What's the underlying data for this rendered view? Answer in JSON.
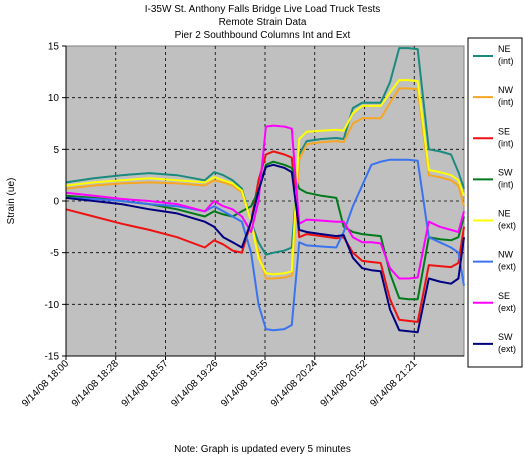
{
  "chart_data": {
    "type": "line",
    "title": "I-35W St. Anthony Falls Bridge Live Load Truck Tests",
    "subtitle": [
      "Remote Strain Data",
      "Pier 2 Southbound Columns Int and Ext"
    ],
    "xlabel": "",
    "ylabel": "Strain (ue)",
    "ylim": [
      -15,
      15
    ],
    "yticks": [
      15,
      10,
      5,
      0,
      -5,
      -10,
      -15
    ],
    "x_tick_labels": [
      "9/14/08 18:00",
      "9/14/08 18:28",
      "9/14/08 18:57",
      "9/14/08 19:26",
      "9/14/08 19:55",
      "9/14/08 20:24",
      "9/14/08 20:52",
      "9/14/08 21:21"
    ],
    "x_unit": "minutes after 9/14/08 18:00",
    "xlim": [
      0,
      215
    ],
    "grid": true,
    "plot_background": "#c0c0c0",
    "legend_position": "right",
    "series": [
      {
        "name": "NE",
        "name2": "(int)",
        "color": "#1a8a7e",
        "x": [
          0,
          15,
          30,
          45,
          60,
          75,
          80,
          85,
          90,
          95,
          100,
          104,
          108,
          112,
          118,
          122,
          126,
          130,
          138,
          146,
          150,
          155,
          160,
          165,
          170,
          175,
          180,
          185,
          190,
          196,
          202,
          208,
          212,
          215
        ],
        "y": [
          1.8,
          2.2,
          2.5,
          2.7,
          2.5,
          2.0,
          2.8,
          2.5,
          2.0,
          1.2,
          -2.0,
          -4.0,
          -5.2,
          -5.0,
          -4.8,
          -4.5,
          4.5,
          5.8,
          6.0,
          6.1,
          6.0,
          9.0,
          9.5,
          9.5,
          9.5,
          11.5,
          14.8,
          14.8,
          14.7,
          5.0,
          4.8,
          4.5,
          2.8,
          1.2
        ]
      },
      {
        "name": "NW",
        "name2": "(int)",
        "color": "#f5a623",
        "x": [
          0,
          15,
          30,
          45,
          60,
          75,
          80,
          85,
          90,
          95,
          100,
          104,
          108,
          112,
          118,
          122,
          126,
          130,
          138,
          146,
          150,
          155,
          160,
          165,
          170,
          175,
          180,
          185,
          190,
          196,
          202,
          208,
          212,
          215
        ],
        "y": [
          1.2,
          1.5,
          1.7,
          1.8,
          1.7,
          1.5,
          2.0,
          1.8,
          1.5,
          0.8,
          -2.0,
          -5.0,
          -7.5,
          -7.5,
          -7.4,
          -7.2,
          4.0,
          5.5,
          5.7,
          5.8,
          5.7,
          7.5,
          8.0,
          8.0,
          8.0,
          9.5,
          10.9,
          10.9,
          10.8,
          2.5,
          2.3,
          2.0,
          1.5,
          -0.5
        ]
      },
      {
        "name": "SE",
        "name2": "(int)",
        "color": "#ee1111",
        "x": [
          0,
          15,
          30,
          45,
          60,
          75,
          80,
          85,
          90,
          95,
          100,
          104,
          108,
          112,
          118,
          122,
          126,
          130,
          138,
          146,
          150,
          155,
          160,
          165,
          170,
          175,
          180,
          185,
          190,
          196,
          202,
          208,
          212,
          215
        ],
        "y": [
          -0.8,
          -1.5,
          -2.2,
          -2.8,
          -3.5,
          -4.5,
          -3.8,
          -4.2,
          -4.8,
          -5.0,
          -2.0,
          2.0,
          4.5,
          4.8,
          4.5,
          4.2,
          -3.5,
          -3.2,
          -3.4,
          -3.6,
          -3.5,
          -5.0,
          -5.8,
          -5.9,
          -6.0,
          -9.5,
          -11.5,
          -11.6,
          -11.7,
          -6.2,
          -6.3,
          -6.4,
          -6.0,
          -2.5
        ]
      },
      {
        "name": "SW",
        "name2": "(int)",
        "color": "#007a1a",
        "x": [
          0,
          15,
          30,
          45,
          60,
          75,
          80,
          85,
          90,
          95,
          100,
          104,
          108,
          112,
          118,
          122,
          126,
          130,
          138,
          146,
          150,
          155,
          160,
          165,
          170,
          175,
          180,
          185,
          190,
          196,
          202,
          208,
          212,
          215
        ],
        "y": [
          0.5,
          0.3,
          0.0,
          -0.3,
          -0.8,
          -1.5,
          -1.0,
          -1.3,
          -1.5,
          -1.0,
          -0.5,
          1.0,
          3.5,
          3.8,
          3.5,
          3.2,
          1.2,
          0.8,
          0.5,
          0.3,
          -2.5,
          -3.0,
          -3.2,
          -3.3,
          -3.4,
          -7.0,
          -9.4,
          -9.5,
          -9.5,
          -3.5,
          -3.7,
          -3.8,
          -3.5,
          -1.5
        ]
      },
      {
        "name": "NE",
        "name2": "(ext)",
        "color": "#ffff00",
        "x": [
          0,
          15,
          30,
          45,
          60,
          75,
          80,
          85,
          90,
          95,
          100,
          104,
          108,
          112,
          118,
          122,
          126,
          130,
          138,
          146,
          150,
          155,
          160,
          165,
          170,
          175,
          180,
          185,
          190,
          196,
          202,
          208,
          212,
          215
        ],
        "y": [
          1.5,
          1.8,
          2.0,
          2.2,
          2.0,
          1.8,
          2.3,
          2.0,
          1.7,
          1.0,
          -2.0,
          -5.5,
          -7.0,
          -7.1,
          -7.0,
          -6.8,
          6.0,
          6.7,
          6.8,
          6.9,
          6.8,
          8.5,
          9.2,
          9.2,
          9.2,
          10.5,
          11.7,
          11.7,
          11.6,
          3.0,
          2.8,
          2.5,
          2.0,
          0.5
        ]
      },
      {
        "name": "NW",
        "name2": "(ext)",
        "color": "#3a73f0",
        "x": [
          0,
          15,
          30,
          45,
          60,
          75,
          80,
          85,
          90,
          95,
          100,
          104,
          108,
          112,
          118,
          122,
          126,
          130,
          138,
          146,
          150,
          155,
          160,
          165,
          170,
          175,
          180,
          185,
          190,
          196,
          202,
          208,
          212,
          215
        ],
        "y": [
          0.3,
          0.2,
          0.0,
          -0.3,
          -0.5,
          -1.0,
          -0.5,
          -1.0,
          -1.5,
          -2.0,
          -5.0,
          -10.0,
          -12.4,
          -12.5,
          -12.4,
          -12.0,
          -4.0,
          -4.3,
          -4.4,
          -4.5,
          -3.0,
          -0.5,
          1.5,
          3.5,
          3.8,
          4.0,
          4.0,
          4.0,
          3.9,
          -3.5,
          -4.0,
          -4.5,
          -5.0,
          -8.2
        ]
      },
      {
        "name": "SE",
        "name2": "(ext)",
        "color": "#ff00ff",
        "x": [
          0,
          15,
          30,
          45,
          60,
          75,
          80,
          85,
          90,
          95,
          100,
          104,
          108,
          112,
          118,
          122,
          126,
          130,
          138,
          146,
          150,
          155,
          160,
          165,
          170,
          175,
          180,
          185,
          190,
          196,
          202,
          208,
          212,
          215
        ],
        "y": [
          0.8,
          0.5,
          0.2,
          0.0,
          -0.3,
          -1.0,
          0.0,
          -0.5,
          -0.8,
          -1.5,
          -3.0,
          0.0,
          7.2,
          7.3,
          7.2,
          7.0,
          -2.2,
          -1.8,
          -1.9,
          -2.0,
          -2.0,
          -3.5,
          -4.0,
          -4.0,
          -4.1,
          -6.5,
          -7.5,
          -7.5,
          -7.4,
          -2.0,
          -2.5,
          -2.8,
          -3.0,
          -1.0
        ]
      },
      {
        "name": "SW",
        "name2": "(ext)",
        "color": "#000080",
        "x": [
          0,
          15,
          30,
          45,
          60,
          75,
          80,
          85,
          90,
          95,
          100,
          104,
          108,
          112,
          118,
          122,
          126,
          130,
          138,
          146,
          150,
          155,
          160,
          165,
          170,
          175,
          180,
          185,
          190,
          196,
          202,
          208,
          212,
          215
        ],
        "y": [
          0.3,
          0.0,
          -0.3,
          -0.8,
          -1.2,
          -2.0,
          -2.5,
          -3.5,
          -4.0,
          -4.5,
          -2.0,
          1.0,
          3.3,
          3.5,
          3.2,
          2.8,
          -2.8,
          -3.0,
          -3.2,
          -3.4,
          -3.3,
          -5.5,
          -6.5,
          -6.7,
          -6.8,
          -10.5,
          -12.5,
          -12.6,
          -12.7,
          -7.5,
          -7.8,
          -8.0,
          -7.5,
          -3.5
        ]
      }
    ]
  },
  "note": "Note: Graph is updated every 5 minutes"
}
